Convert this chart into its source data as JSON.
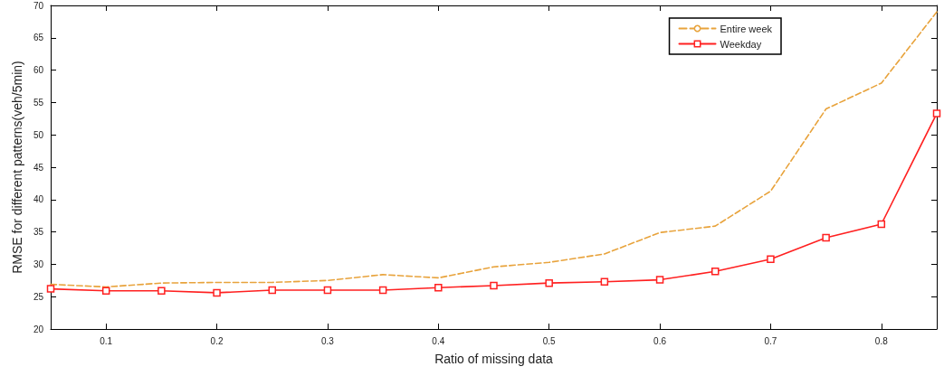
{
  "chart_data": {
    "type": "line",
    "xlabel": "Ratio of missing data",
    "ylabel": "RMSE for different patterns(veh/5min)",
    "x": [
      0.05,
      0.1,
      0.15,
      0.2,
      0.25,
      0.3,
      0.35,
      0.4,
      0.45,
      0.5,
      0.55,
      0.6,
      0.65,
      0.7,
      0.75,
      0.8,
      0.85
    ],
    "series": [
      {
        "name": "Entire week",
        "color": "#e8a33c",
        "line_style": "dashed",
        "marker": "none",
        "values": [
          26.9,
          26.5,
          27.1,
          27.2,
          27.2,
          27.5,
          28.4,
          27.9,
          29.6,
          30.3,
          31.6,
          34.9,
          35.9,
          41.3,
          54.0,
          58.0,
          69.0
        ]
      },
      {
        "name": "Weekday",
        "color": "#ff2020",
        "line_style": "solid",
        "marker": "square",
        "values": [
          26.2,
          25.9,
          25.9,
          25.6,
          26.0,
          26.0,
          26.0,
          26.4,
          26.7,
          27.1,
          27.3,
          27.6,
          28.9,
          30.8,
          34.1,
          36.2,
          53.3
        ]
      }
    ],
    "xlim": [
      0.05,
      0.85
    ],
    "xticks": [
      0.1,
      0.2,
      0.3,
      0.4,
      0.5,
      0.6,
      0.7,
      0.8
    ],
    "ylim": [
      20,
      70
    ],
    "yticks": [
      20,
      25,
      30,
      35,
      40,
      45,
      50,
      55,
      60,
      65,
      70
    ],
    "grid": false,
    "legend": "top right"
  }
}
